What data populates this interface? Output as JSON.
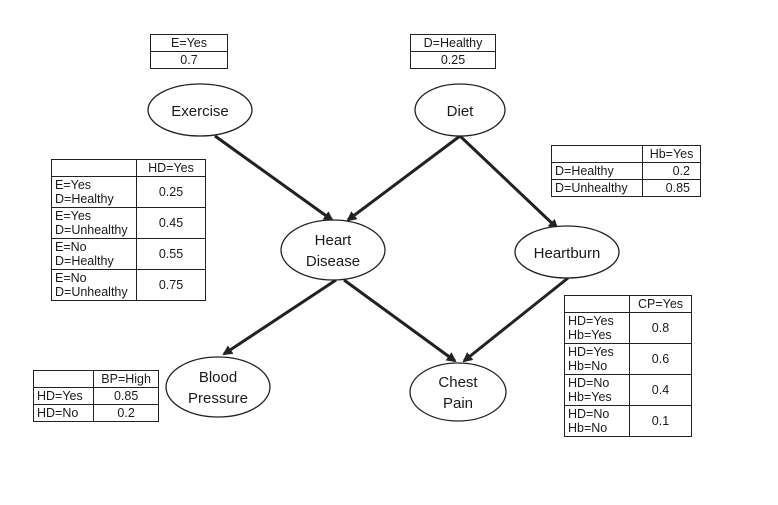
{
  "nodes": {
    "exercise": [
      "Exercise"
    ],
    "diet": [
      "Diet"
    ],
    "heart_disease": [
      "Heart",
      "Disease"
    ],
    "heartburn": [
      "Heartburn"
    ],
    "blood_pressure": [
      "Blood",
      "Pressure"
    ],
    "chest_pain": [
      "Chest",
      "Pain"
    ]
  },
  "tables": {
    "exercise": {
      "header": "E=Yes",
      "value": "0.7"
    },
    "diet": {
      "header": "D=Healthy",
      "value": "0.25"
    },
    "heart_disease": {
      "header": "HD=Yes",
      "rows": [
        {
          "cond": [
            "E=Yes",
            "D=Healthy"
          ],
          "value": "0.25"
        },
        {
          "cond": [
            "E=Yes",
            "D=Unhealthy"
          ],
          "value": "0.45"
        },
        {
          "cond": [
            "E=No",
            "D=Healthy"
          ],
          "value": "0.55"
        },
        {
          "cond": [
            "E=No",
            "D=Unhealthy"
          ],
          "value": "0.75"
        }
      ]
    },
    "heartburn": {
      "header": "Hb=Yes",
      "rows": [
        {
          "cond": "D=Healthy",
          "value": "0.2"
        },
        {
          "cond": "D=Unhealthy",
          "value": "0.85"
        }
      ]
    },
    "blood_pressure": {
      "header": "BP=High",
      "rows": [
        {
          "cond": "HD=Yes",
          "value": "0.85"
        },
        {
          "cond": "HD=No",
          "value": "0.2"
        }
      ]
    },
    "chest_pain": {
      "header": "CP=Yes",
      "rows": [
        {
          "cond": [
            "HD=Yes",
            "Hb=Yes"
          ],
          "value": "0.8"
        },
        {
          "cond": [
            "HD=Yes",
            "Hb=No"
          ],
          "value": "0.6"
        },
        {
          "cond": [
            "HD=No",
            "Hb=Yes"
          ],
          "value": "0.4"
        },
        {
          "cond": [
            "HD=No",
            "Hb=No"
          ],
          "value": "0.1"
        }
      ]
    }
  },
  "colors": {
    "ink": "#1a1a1a",
    "edge": "#222222",
    "background": "#ffffff"
  }
}
